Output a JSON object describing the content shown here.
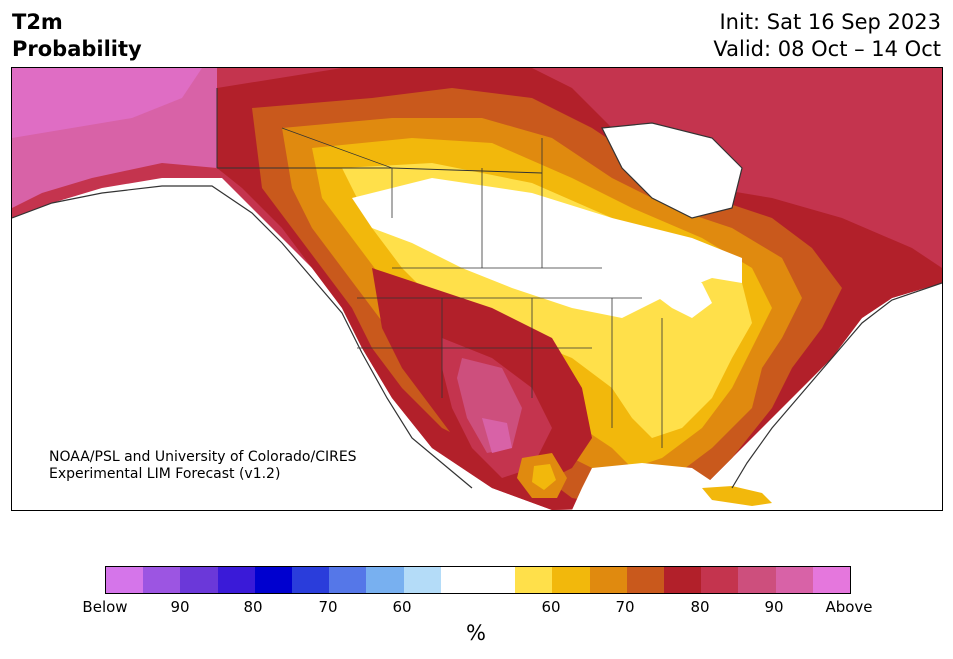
{
  "title": {
    "line1": "T2m",
    "line2": "Probability"
  },
  "dates": {
    "init": "Init: Sat 16 Sep 2023",
    "valid": "Valid: 08 Oct – 14 Oct"
  },
  "credit": {
    "line1": "NOAA/PSL and University of Colorado/CIRES",
    "line2": "Experimental LIM Forecast (v1.2)"
  },
  "colorbar": {
    "colors": [
      "#d575ea",
      "#9c55e2",
      "#6b38d9",
      "#3a1ad8",
      "#0000cf",
      "#2a3ddb",
      "#5577e8",
      "#78b0f0",
      "#b4dcf8",
      "#ffffff",
      "#ffffff",
      "#ffe04a",
      "#f2b80c",
      "#e08a0f",
      "#c9591c",
      "#b2202a",
      "#c4344e",
      "#cd4f7d",
      "#d862a7",
      "#e577dd"
    ],
    "tick_labels": [
      "Below",
      "90",
      "80",
      "70",
      "60",
      "60",
      "70",
      "80",
      "90",
      "Above"
    ],
    "unit": "%"
  },
  "legend_categories": [
    "Below-normal probability (purple/blue)",
    "Near normal (white)",
    "Above-normal probability (yellow/orange/red/magenta)"
  ]
}
